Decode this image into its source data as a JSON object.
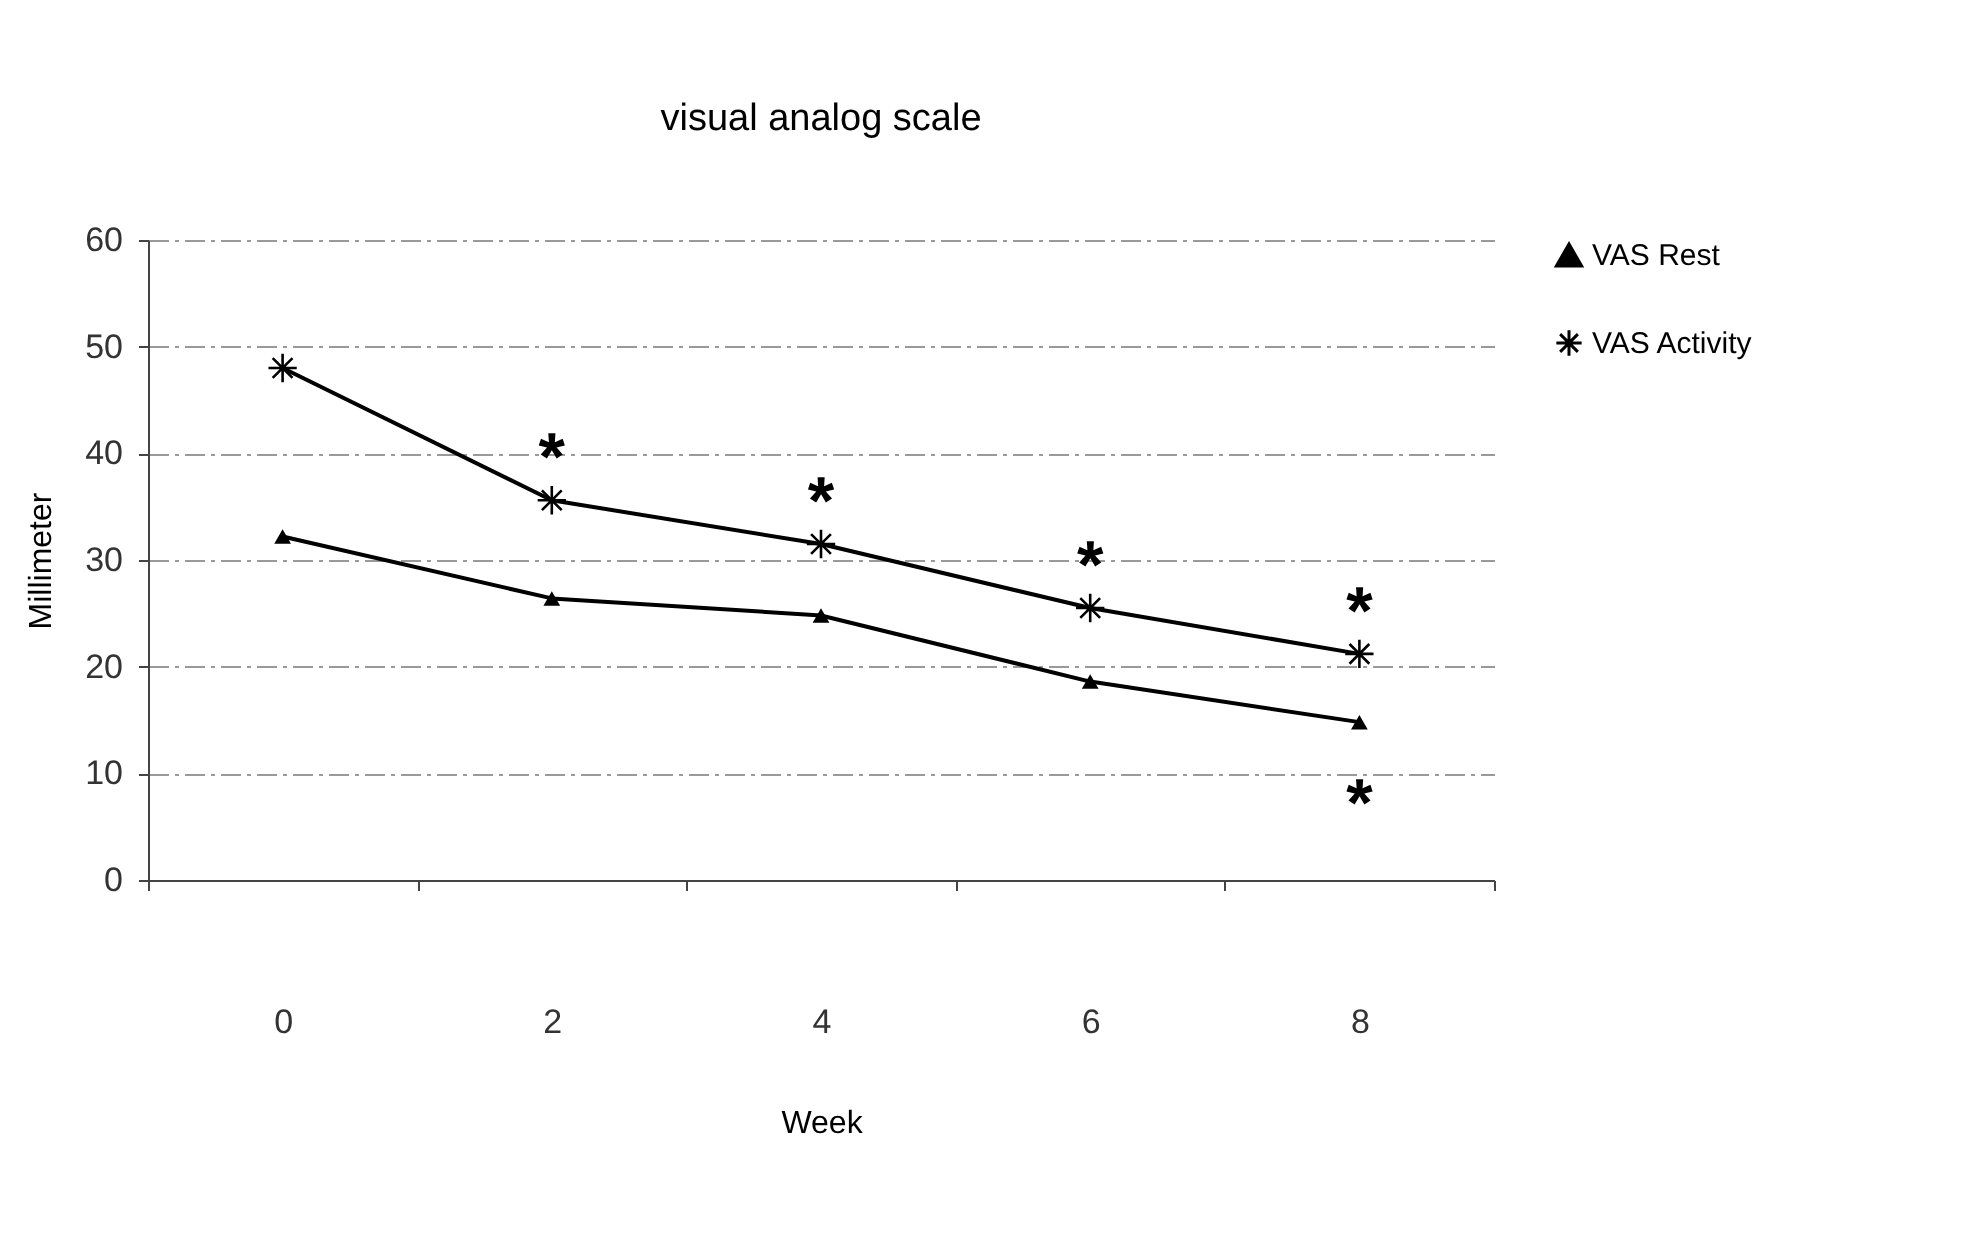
{
  "chart_data": {
    "type": "line",
    "title": "visual analog scale",
    "xlabel": "Week",
    "ylabel": "Millimeter",
    "categories": [
      "0",
      "2",
      "4",
      "6",
      "8"
    ],
    "series": [
      {
        "name": "VAS Rest",
        "color": "#000000",
        "marker": "triangle",
        "values": [
          32.2,
          26.4,
          24.8,
          18.6,
          14.8
        ]
      },
      {
        "name": "VAS Activity",
        "color": "#000000",
        "marker": "cross",
        "values": [
          48,
          35.6,
          31.5,
          25.5,
          21.2
        ]
      }
    ],
    "ylim": [
      0,
      60
    ],
    "yticks": [
      0,
      10,
      20,
      30,
      40,
      50,
      60
    ],
    "grid": "y",
    "legend": "right",
    "line_style": "solid",
    "annotations": [
      {
        "text": "*",
        "x": "2",
        "y": 35.6
      },
      {
        "text": "*",
        "x": "4",
        "y": 31.5
      },
      {
        "text": "*",
        "x": "6",
        "y": 25.5
      },
      {
        "text": "*",
        "x": "8",
        "y": 21.2
      },
      {
        "text": "*",
        "x": "8",
        "y": 14.8
      }
    ]
  }
}
